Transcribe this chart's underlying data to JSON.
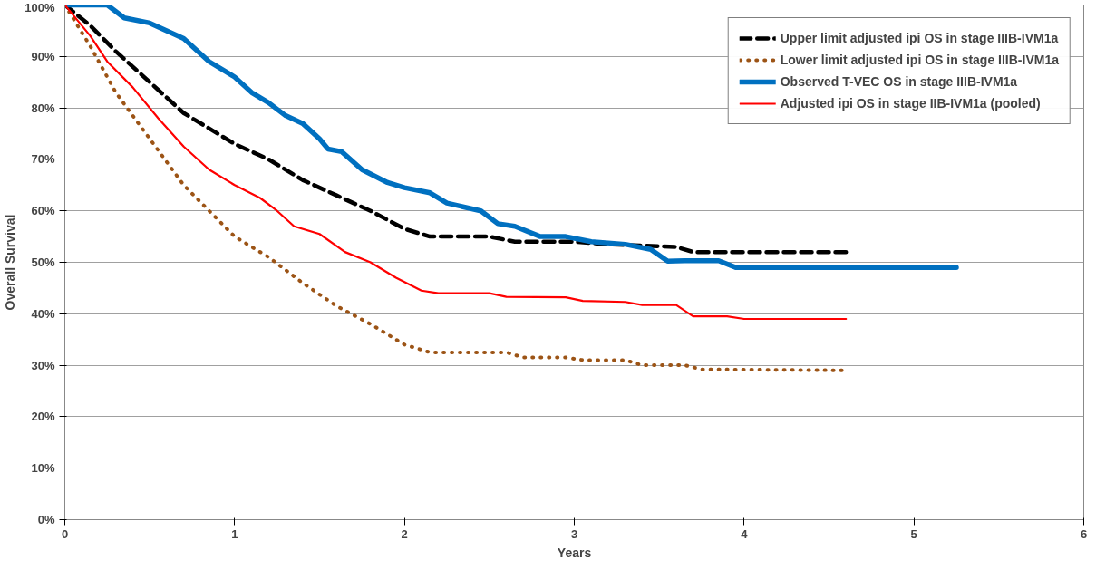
{
  "chart_data": {
    "type": "line",
    "xlabel": "Years",
    "ylabel": "Overall Survival",
    "xlim": [
      0,
      6
    ],
    "xticks": [
      0,
      1,
      2,
      3,
      4,
      5,
      6
    ],
    "ylim": [
      0,
      100
    ],
    "yticks": [
      {
        "value": 0,
        "label": "0%"
      },
      {
        "value": 10,
        "label": "10%"
      },
      {
        "value": 20,
        "label": "20%"
      },
      {
        "value": 30,
        "label": "30%"
      },
      {
        "value": 40,
        "label": "40%"
      },
      {
        "value": 50,
        "label": "50%"
      },
      {
        "value": 60,
        "label": "60%"
      },
      {
        "value": 70,
        "label": "70%"
      },
      {
        "value": 80,
        "label": "80%"
      },
      {
        "value": 90,
        "label": "90%"
      },
      {
        "value": 100,
        "label": "100%"
      }
    ],
    "grid": "y",
    "legend": "top right",
    "marker": "none",
    "series": [
      {
        "name": "Upper limit adjusted ipi OS in stage IIIB-IVM1a",
        "color": "#000000",
        "line_style": "dashed",
        "x": [
          0,
          0.15,
          0.3,
          0.5,
          0.7,
          1.0,
          1.2,
          1.4,
          1.6,
          1.8,
          2.0,
          2.15,
          2.5,
          2.65,
          3.0,
          3.2,
          3.6,
          3.7,
          4.0,
          4.6
        ],
        "values": [
          100,
          96,
          91,
          85,
          79,
          73,
          70,
          66,
          63,
          60,
          56.5,
          55,
          55,
          54,
          54,
          53.5,
          53,
          52,
          52,
          52
        ]
      },
      {
        "name": "Lower limit adjusted ipi OS in stage IIIB-IVM1a",
        "color": "#9c5416",
        "line_style": "dotted",
        "x": [
          0,
          0.15,
          0.3,
          0.5,
          0.7,
          1.0,
          1.2,
          1.4,
          1.6,
          1.8,
          2.0,
          2.15,
          2.6,
          2.7,
          2.95,
          3.05,
          3.3,
          3.4,
          3.65,
          3.75,
          4.6
        ],
        "values": [
          100,
          92,
          83,
          74,
          65,
          55,
          51,
          46,
          41.5,
          38,
          34,
          32.5,
          32.5,
          31.5,
          31.5,
          31,
          31,
          30,
          30,
          29.2,
          29
        ]
      },
      {
        "name": "Observed T-VEC OS in stage IIIB-IVM1a",
        "color": "#0070c0",
        "line_style": "solid",
        "x": [
          0,
          0.25,
          0.35,
          0.5,
          0.7,
          0.85,
          1.0,
          1.1,
          1.2,
          1.3,
          1.4,
          1.5,
          1.55,
          1.63,
          1.75,
          1.9,
          2.0,
          2.15,
          2.25,
          2.45,
          2.55,
          2.65,
          2.8,
          2.95,
          3.1,
          3.3,
          3.45,
          3.55,
          3.65,
          3.85,
          3.95,
          4.5,
          5.25
        ],
        "values": [
          100,
          100,
          97.5,
          96.5,
          93.5,
          89,
          86,
          83,
          81,
          78.5,
          77,
          74,
          72,
          71.5,
          68,
          65.5,
          64.5,
          63.5,
          61.5,
          60,
          57.5,
          57,
          55,
          55,
          54,
          53.5,
          52.5,
          50.2,
          50.3,
          50.3,
          49,
          49,
          49
        ]
      },
      {
        "name": "Adjusted ipi OS in stage IIB-IVM1a (pooled)",
        "color": "#ff0000",
        "line_style": "solid",
        "x": [
          0,
          0.15,
          0.25,
          0.4,
          0.55,
          0.7,
          0.85,
          1.0,
          1.15,
          1.25,
          1.35,
          1.5,
          1.65,
          1.8,
          1.95,
          2.1,
          2.2,
          2.5,
          2.6,
          2.95,
          3.05,
          3.3,
          3.4,
          3.6,
          3.7,
          3.9,
          4.0,
          4.6
        ],
        "values": [
          100,
          94,
          89,
          84,
          78,
          72.5,
          68,
          65,
          62.5,
          60,
          57,
          55.5,
          52,
          50,
          47,
          44.5,
          44,
          44,
          43.3,
          43.2,
          42.5,
          42.3,
          41.7,
          41.7,
          39.5,
          39.5,
          39,
          39
        ]
      }
    ]
  }
}
